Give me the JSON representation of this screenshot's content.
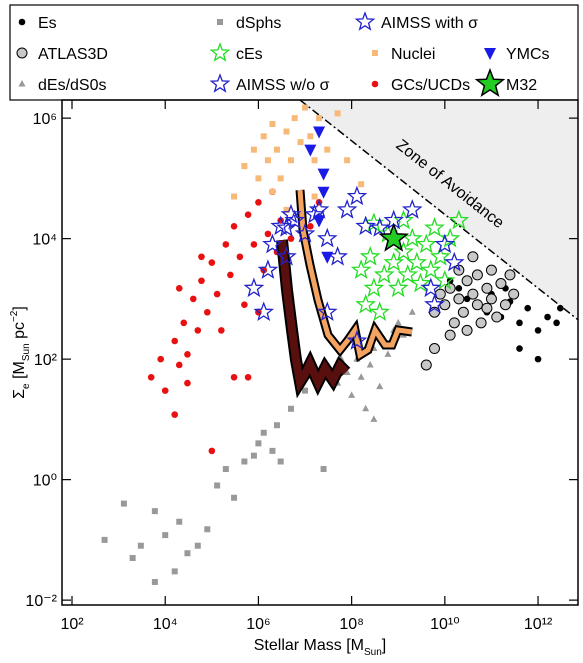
{
  "chart_data": {
    "type": "scatter",
    "log_x": true,
    "log_y": true,
    "xlim": [
      61,
      7200000000000.0
    ],
    "ylim": [
      0.0083,
      2000000.0
    ],
    "xticks": [
      {
        "value": 100,
        "label": "10²"
      },
      {
        "value": 10000.0,
        "label": "10⁴"
      },
      {
        "value": 1000000.0,
        "label": "10⁶"
      },
      {
        "value": 100000000.0,
        "label": "10⁸"
      },
      {
        "value": 10000000000.0,
        "label": "10¹⁰"
      },
      {
        "value": 1000000000000.0,
        "label": "10¹²"
      }
    ],
    "yticks": [
      {
        "value": 0.01,
        "label": "10⁻²"
      },
      {
        "value": 1,
        "label": "10⁰"
      },
      {
        "value": 100,
        "label": "10²"
      },
      {
        "value": 10000.0,
        "label": "10⁴"
      },
      {
        "value": 1000000.0,
        "label": "10⁶"
      }
    ],
    "x_label": [
      {
        "text": "Stellar Mass [M"
      },
      {
        "text": "Sun",
        "style": "sub"
      },
      {
        "text": "]"
      }
    ],
    "y_label": [
      {
        "text": "Σ"
      },
      {
        "text": "e",
        "style": "sub"
      },
      {
        "text": " [M"
      },
      {
        "text": "Sun",
        "style": "sub"
      },
      {
        "text": " pc"
      },
      {
        "text": "−2",
        "style": "sup"
      },
      {
        "text": "]"
      }
    ],
    "zone": {
      "label": "Zone of Avoidance",
      "x": [
        7800000.0,
        7200000000000.0
      ],
      "y": [
        2000000.0,
        450
      ],
      "color": "#eeeeee"
    },
    "series": [
      {
        "name": "dSphs",
        "marker": "square",
        "color": "#999999",
        "x": [
          500.0,
          1300.0,
          2000.0,
          3000.0,
          6000.0,
          6000.0,
          10000.0,
          16000.0,
          20000.0,
          30000.0,
          50000.0,
          80000.0,
          130000.0,
          200000.0,
          300000.0,
          500000.0,
          800000.0,
          1000000.0,
          1300000.0,
          2000000.0,
          2500000.0,
          3000000.0,
          5000000.0,
          10000000.0,
          25000000.0
        ],
        "y": [
          0.1,
          0.4,
          0.05,
          0.08,
          0.02,
          0.3,
          0.12,
          0.03,
          0.2,
          0.06,
          0.08,
          0.15,
          0.8,
          1.5,
          0.5,
          2,
          2.5,
          4,
          6,
          3,
          8,
          2,
          15,
          30,
          1.5
        ]
      },
      {
        "name": "dEs/dS0s",
        "marker": "triangle",
        "color": "#999999",
        "x": [
          50000000.0,
          80000000.0,
          100000000.0,
          130000000.0,
          160000000.0,
          200000000.0,
          250000000.0,
          300000000.0,
          400000000.0,
          500000000.0,
          600000000.0,
          800000000.0,
          1000000000.0,
          1300000000.0,
          60000000.0,
          300000000.0,
          2000000000.0
        ],
        "y": [
          40,
          60,
          25,
          100,
          50,
          15,
          80,
          150,
          35,
          200,
          120,
          300,
          400,
          250,
          100,
          10,
          600
        ]
      },
      {
        "name": "GCs/UCDs",
        "marker": "circle",
        "color": "#e81010",
        "x": [
          5000.0,
          8000.0,
          10000.0,
          16000.0,
          20000.0,
          25000.0,
          30000.0,
          40000.0,
          50000.0,
          60000.0,
          80000.0,
          100000.0,
          130000.0,
          160000.0,
          200000.0,
          250000.0,
          300000.0,
          400000.0,
          500000.0,
          600000.0,
          800000.0,
          1000000.0,
          1300000.0,
          1600000.0,
          2000000.0,
          2500000.0,
          3000000.0,
          5000000.0,
          8000000.0,
          13000000.0,
          20000000.0,
          100000.0,
          300000.0,
          16000.0,
          1000000.0,
          600000.0,
          30000.0,
          20000.0,
          60000.0
        ],
        "y": [
          50,
          100,
          30,
          200,
          80,
          400,
          120,
          1000,
          300,
          2000,
          600,
          4000,
          1200,
          300,
          8000,
          2500,
          16000.0,
          5000,
          800,
          25000.0,
          8000,
          40000.0,
          3000,
          12000.0,
          60000.0,
          6000,
          20000.0,
          10000.0,
          30000.0,
          16000.0,
          40000.0,
          3,
          50,
          12,
          600,
          50,
          40,
          1500,
          5000
        ]
      },
      {
        "name": "Nuclei",
        "marker": "square",
        "color": "#f8b878",
        "x": [
          300000.0,
          500000.0,
          800000.0,
          1000000.0,
          1300000.0,
          1600000.0,
          2000000.0,
          2500000.0,
          3000000.0,
          4000000.0,
          5000000.0,
          6000000.0,
          8000000.0,
          10000000.0,
          13000000.0,
          16000000.0,
          20000000.0,
          30000000.0,
          50000000.0,
          80000000.0,
          160000000.0,
          4000000.0,
          2000000.0,
          16000000.0
        ],
        "y": [
          50000.0,
          160000.0,
          300000.0,
          100000.0,
          500000.0,
          200000.0,
          800000.0,
          300000.0,
          100000.0,
          600000.0,
          200000.0,
          1000000.0,
          400000.0,
          1500000.0,
          500000.0,
          200000.0,
          1000000.0,
          300000.0,
          1200000.0,
          200000.0,
          80000.0,
          30000.0,
          60000.0,
          50000.0
        ]
      },
      {
        "name": "Es",
        "marker": "circle",
        "color": "#000000",
        "x": [
          13000000000.0,
          20000000000.0,
          30000000000.0,
          50000000000.0,
          80000000000.0,
          100000000000.0,
          160000000000.0,
          250000000000.0,
          400000000000.0,
          600000000000.0,
          1000000000000.0,
          1600000000000.0,
          2500000000000.0,
          400000000000.0,
          200000000000.0,
          1000000000000.0,
          3000000000000.0
        ],
        "y": [
          2000,
          1500,
          1000,
          800,
          600,
          1200,
          500,
          900,
          400,
          700,
          300,
          500,
          400,
          150,
          1500,
          100,
          700
        ]
      },
      {
        "name": "ATLAS3D",
        "marker": "circle",
        "color": "#c8c8c8",
        "edgecolor": "#000000",
        "x": [
          10000000000.0,
          13000000000.0,
          16000000000.0,
          20000000000.0,
          20000000000.0,
          25000000000.0,
          30000000000.0,
          30000000000.0,
          40000000000.0,
          40000000000.0,
          50000000000.0,
          50000000000.0,
          60000000000.0,
          80000000000.0,
          80000000000.0,
          100000000000.0,
          100000000000.0,
          130000000000.0,
          160000000000.0,
          200000000000.0,
          250000000000.0,
          300000000000.0,
          13000000000.0,
          6000000000.0,
          8000000000.0,
          6000000000.0,
          4000000000.0
        ],
        "y": [
          800,
          1500,
          400,
          3000,
          1000,
          600,
          2000,
          300,
          1200,
          5000,
          800,
          2500,
          400,
          1500,
          700,
          3000,
          1000,
          500,
          1800,
          800,
          2500,
          1200,
          250,
          600,
          1200,
          150,
          80
        ]
      },
      {
        "name": "cEs",
        "marker": "star",
        "color": "none",
        "edgecolor": "#22dd22",
        "x": [
          160000000.0,
          200000000.0,
          250000000.0,
          300000000.0,
          400000000.0,
          500000000.0,
          600000000.0,
          800000000.0,
          1000000000.0,
          1300000000.0,
          1600000000.0,
          2000000000.0,
          2500000000.0,
          3000000000.0,
          4000000000.0,
          5000000000.0,
          6000000000.0,
          8000000000.0,
          10000000000.0,
          13000000000.0,
          20000000000.0,
          1300000000.0,
          300000000.0
        ],
        "y": [
          3000,
          800,
          5000,
          1500,
          600,
          2500,
          12000.0,
          4000,
          1500,
          6000,
          2500,
          10000.0,
          4000,
          1800,
          8000,
          3000,
          15000.0,
          5000,
          2000,
          10000.0,
          20000.0,
          20000.0,
          18000.0
        ]
      },
      {
        "name": "AIMSS w/o σ",
        "marker": "star",
        "color": "none",
        "edgecolor": "#2222cc",
        "x": [
          800000.0,
          1300000.0,
          1600000.0,
          2000000.0,
          3000000.0,
          4000000.0,
          6000000.0,
          10000000.0,
          16000000.0,
          30000000.0,
          30000000.0,
          80000000.0,
          130000000.0,
          200000000.0,
          400000000.0,
          800000000.0,
          5000000000.0,
          10000000000.0,
          16000000000.0
        ],
        "y": [
          1500,
          600,
          3000,
          8000,
          16000.0,
          5000,
          20000.0,
          12000.0,
          25000.0,
          10000.0,
          600,
          30000.0,
          200,
          16000.0,
          15000.0,
          20000.0,
          1500,
          8000,
          4000
        ]
      },
      {
        "name": "AIMSS with σ",
        "marker": "star",
        "color": "none",
        "edgecolor": "#2222cc",
        "x": [
          4000000.0,
          5000000.0,
          20000000.0,
          50000000.0,
          130000000.0,
          2000000000.0,
          6000000000.0
        ],
        "y": [
          15000.0,
          25000.0,
          30000.0,
          5000,
          50000.0,
          30000.0,
          800
        ]
      },
      {
        "name": "YMCs",
        "marker": "down-triangle",
        "color": "#1a1ae6",
        "x": [
          13000000.0,
          25000000.0,
          25000000.0,
          20000000.0,
          30000000.0,
          20000000.0
        ],
        "y": [
          300000.0,
          120000.0,
          60000.0,
          20000.0,
          5000,
          600000.0
        ]
      },
      {
        "name": "M32",
        "marker": "big-star",
        "color": "#22cc22",
        "edgecolor": "#000000",
        "x": [
          800000000.0
        ],
        "y": [
          10000.0
        ]
      }
    ]
  }
}
